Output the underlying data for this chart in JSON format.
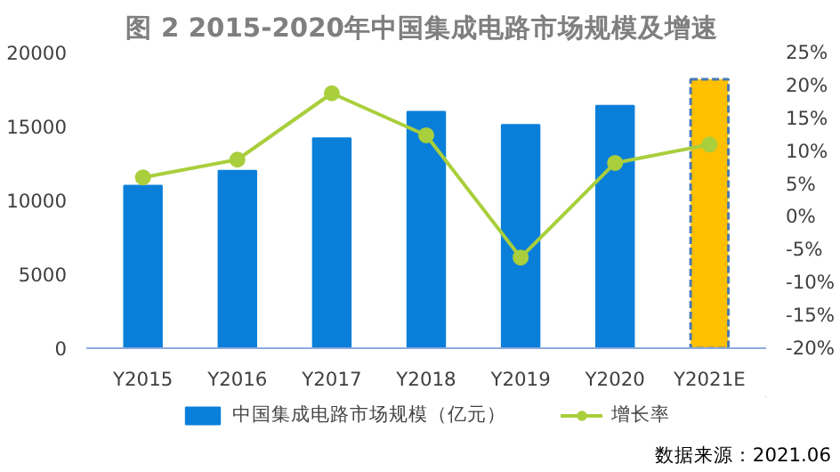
{
  "chart_data": {
    "type": "bar",
    "title": "图 2  2015-2020年中国集成电路市场规模及增速",
    "categories": [
      "Y2015",
      "Y2016",
      "Y2017",
      "Y2018",
      "Y2019",
      "Y2020",
      "Y2021E"
    ],
    "series": [
      {
        "name": "中国集成电路市场规模（亿元）",
        "color": "#0a7fd9",
        "colors": [
          "#0a7fd9",
          "#0a7fd9",
          "#0a7fd9",
          "#0a7fd9",
          "#0a7fd9",
          "#0a7fd9",
          "#ffc000"
        ],
        "values": [
          11000,
          12000,
          14200,
          16000,
          15100,
          16400,
          18200
        ]
      },
      {
        "name": "增长率",
        "type": "line",
        "axis": "y2",
        "color": "#a9cf3c",
        "marker": "circle",
        "values": [
          6.0,
          8.7,
          18.8,
          12.4,
          -6.2,
          8.2,
          11.0
        ]
      }
    ],
    "ylim": [
      0,
      20000
    ],
    "yticks": [
      0,
      5000,
      10000,
      15000,
      20000
    ],
    "y2lim": [
      -20,
      25
    ],
    "y2ticks": [
      {
        "value": -20,
        "label": "-20%"
      },
      {
        "value": -15,
        "label": "-15%"
      },
      {
        "value": -10,
        "label": "-10%"
      },
      {
        "value": -5,
        "label": "-5%"
      },
      {
        "value": 0,
        "label": "0%"
      },
      {
        "value": 5,
        "label": "5%"
      },
      {
        "value": 10,
        "label": "10%"
      },
      {
        "value": 15,
        "label": "15%"
      },
      {
        "value": 20,
        "label": "20%"
      },
      {
        "value": 25,
        "label": "25%"
      }
    ],
    "grid": false,
    "legend": "bottom",
    "annotations": [
      "数据来源：2021.06"
    ]
  }
}
